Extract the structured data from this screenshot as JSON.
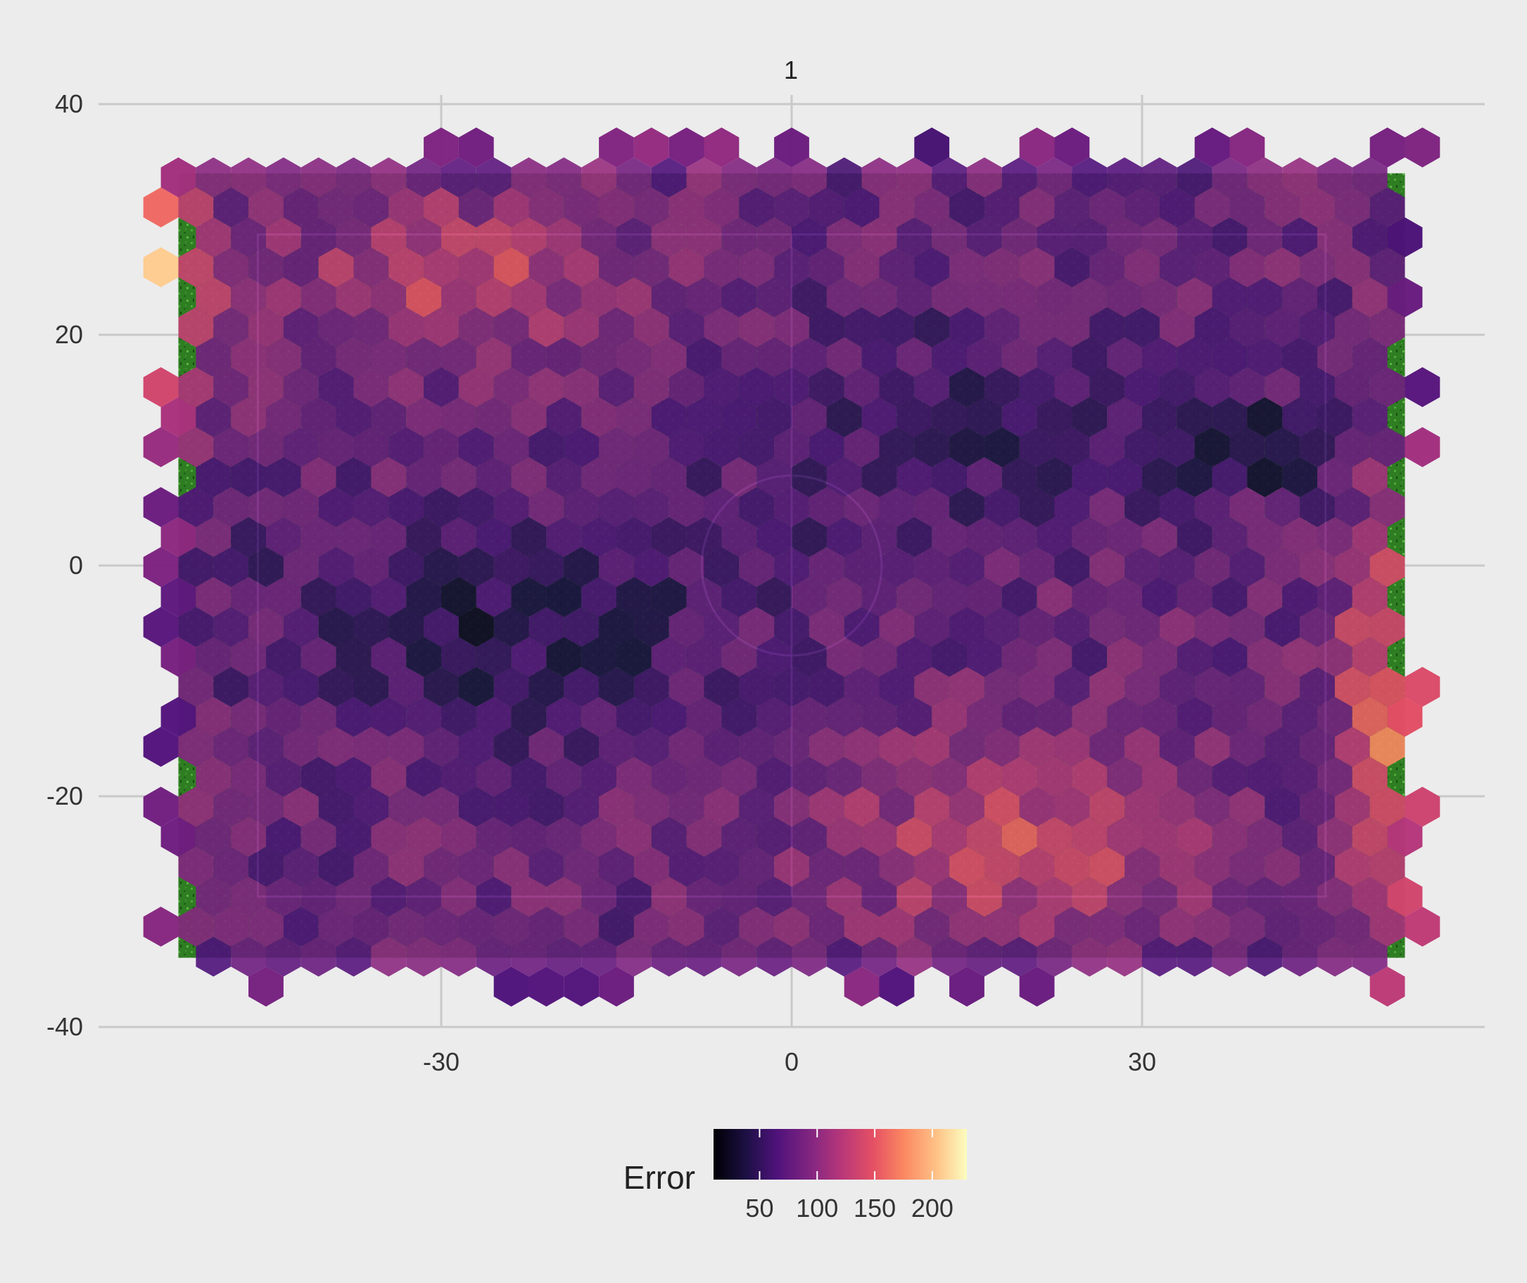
{
  "facet": {
    "label": "1"
  },
  "legend": {
    "title": "Error",
    "ticks": [
      "50",
      "100",
      "150",
      "200"
    ],
    "tick_values": [
      50,
      100,
      150,
      200
    ],
    "range": [
      10,
      230
    ]
  },
  "colors": {
    "background": "#ececec",
    "gridline": "#c9c9c9",
    "grass_dark": "#1d5e16",
    "grass_light": "#3f9a2f",
    "pitch_lines": "#ffffff",
    "palette": "magma"
  },
  "chart_data": {
    "type": "heatmap",
    "subtype": "hexbin",
    "title": "",
    "xlabel": "",
    "ylabel": "",
    "xlim": [
      -59,
      59
    ],
    "ylim": [
      -40,
      42
    ],
    "x_ticks": [
      -30,
      0,
      30
    ],
    "x_tick_labels": [
      "-30",
      "0",
      "30"
    ],
    "y_ticks": [
      -40,
      -20,
      0,
      20,
      40
    ],
    "y_tick_labels": [
      "-40",
      "-20",
      "0",
      "20",
      "40"
    ],
    "grid": true,
    "legend_position": "bottom",
    "background_image": "soccer pitch (grass) with pitch markings",
    "value_range": [
      10,
      230
    ],
    "hex_field": {
      "x_range": [
        -53,
        55
      ],
      "y_range": [
        -37,
        37
      ],
      "regions": [
        {
          "area": "top-left corner",
          "x": [
            -54,
            -44
          ],
          "y": [
            15,
            36
          ],
          "value_range": [
            150,
            230
          ]
        },
        {
          "area": "upper-left",
          "x": [
            -35,
            -15
          ],
          "y": [
            20,
            33
          ],
          "value_range": [
            110,
            160
          ]
        },
        {
          "area": "left-center",
          "x": [
            -45,
            5
          ],
          "y": [
            -20,
            10
          ],
          "value_range": [
            30,
            80
          ]
        },
        {
          "area": "center",
          "x": [
            -5,
            25
          ],
          "y": [
            -10,
            30
          ],
          "value_range": [
            60,
            100
          ]
        },
        {
          "area": "lower-right",
          "x": [
            5,
            45
          ],
          "y": [
            -35,
            -10
          ],
          "value_range": [
            110,
            170
          ]
        },
        {
          "area": "right edge",
          "x": [
            45,
            56
          ],
          "y": [
            -35,
            10
          ],
          "value_range": [
            140,
            210
          ]
        },
        {
          "area": "right goal area",
          "x": [
            30,
            48
          ],
          "y": [
            5,
            15
          ],
          "value_range": [
            20,
            60
          ]
        }
      ]
    }
  }
}
